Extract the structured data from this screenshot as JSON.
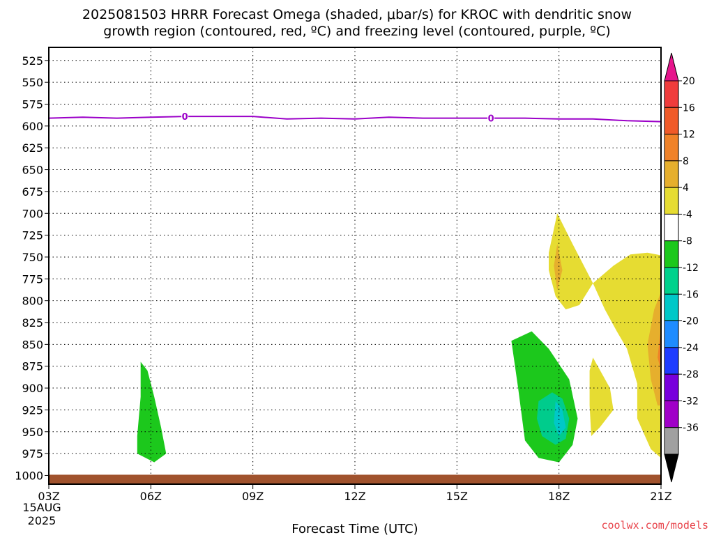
{
  "title": {
    "line1": "2025081503 HRRR Forecast Omega (shaded, μbar/s) for KROC with dendritic snow",
    "line2": "growth region (contoured, red, ºC) and freezing level (contoured, purple, ºC)"
  },
  "credit": "coolwx.com/models",
  "chart_data": {
    "type": "heatmap",
    "xlabel": "Forecast Time (UTC)",
    "x_date_label": [
      "15AUG",
      "2025"
    ],
    "x_ticks": [
      {
        "label": "03Z",
        "hour": 3
      },
      {
        "label": "06Z",
        "hour": 6
      },
      {
        "label": "09Z",
        "hour": 9
      },
      {
        "label": "12Z",
        "hour": 12
      },
      {
        "label": "15Z",
        "hour": 15
      },
      {
        "label": "18Z",
        "hour": 18
      },
      {
        "label": "21Z",
        "hour": 21
      }
    ],
    "xlim": [
      3,
      21
    ],
    "ylim": [
      1010,
      510
    ],
    "y_ticks": [
      525,
      550,
      575,
      600,
      625,
      650,
      675,
      700,
      725,
      750,
      775,
      800,
      825,
      850,
      875,
      900,
      925,
      950,
      975,
      1000
    ],
    "grid": true,
    "freezing_level": {
      "label": "0",
      "color": "#9b00c8",
      "label_hours": [
        7,
        16
      ],
      "points": [
        [
          3,
          591
        ],
        [
          4,
          590
        ],
        [
          5,
          591
        ],
        [
          6,
          590
        ],
        [
          7,
          589
        ],
        [
          8,
          589
        ],
        [
          9,
          589
        ],
        [
          10,
          592
        ],
        [
          11,
          591
        ],
        [
          12,
          592
        ],
        [
          13,
          590
        ],
        [
          14,
          591
        ],
        [
          15,
          591
        ],
        [
          16,
          591
        ],
        [
          17,
          591
        ],
        [
          18,
          592
        ],
        [
          19,
          592
        ],
        [
          20,
          594
        ],
        [
          21,
          595
        ]
      ]
    },
    "surface": {
      "color": "#a0522d",
      "pressure": 1000
    },
    "omega_regions": [
      {
        "level": "-8",
        "color": "#1cc81c",
        "points": [
          [
            5.7,
            870
          ],
          [
            5.9,
            880
          ],
          [
            6.1,
            910
          ],
          [
            6.3,
            945
          ],
          [
            6.45,
            975
          ],
          [
            6.1,
            985
          ],
          [
            5.6,
            975
          ],
          [
            5.6,
            955
          ],
          [
            5.7,
            910
          ]
        ]
      },
      {
        "level": "-8",
        "color": "#1cc81c",
        "points": [
          [
            16.6,
            846
          ],
          [
            17.2,
            835
          ],
          [
            17.7,
            855
          ],
          [
            18.3,
            890
          ],
          [
            18.55,
            935
          ],
          [
            18.4,
            965
          ],
          [
            18.0,
            985
          ],
          [
            17.4,
            980
          ],
          [
            17.0,
            960
          ],
          [
            16.8,
            900
          ]
        ]
      },
      {
        "level": "-12",
        "color": "#00cc8c",
        "points": [
          [
            17.4,
            915
          ],
          [
            17.8,
            905
          ],
          [
            18.1,
            912
          ],
          [
            18.3,
            935
          ],
          [
            18.2,
            958
          ],
          [
            17.9,
            965
          ],
          [
            17.5,
            955
          ],
          [
            17.35,
            935
          ]
        ]
      },
      {
        "level": "-16",
        "color": "#00c8c8",
        "points": [
          [
            17.9,
            915
          ],
          [
            18.1,
            925
          ],
          [
            18.2,
            945
          ],
          [
            18.0,
            955
          ],
          [
            17.85,
            940
          ]
        ]
      },
      {
        "level": "4",
        "color": "#e6dc32",
        "points": [
          [
            17.95,
            700
          ],
          [
            18.4,
            735
          ],
          [
            19.0,
            780
          ],
          [
            18.6,
            805
          ],
          [
            18.2,
            810
          ],
          [
            17.9,
            795
          ],
          [
            17.7,
            765
          ],
          [
            17.7,
            745
          ]
        ]
      },
      {
        "level": "4",
        "color": "#e6dc32",
        "points": [
          [
            19.0,
            780
          ],
          [
            19.6,
            760
          ],
          [
            20.1,
            747
          ],
          [
            20.6,
            745
          ],
          [
            21.0,
            748
          ],
          [
            21.0,
            980
          ],
          [
            20.7,
            970
          ],
          [
            20.3,
            935
          ],
          [
            20.3,
            895
          ],
          [
            20.0,
            855
          ],
          [
            19.7,
            835
          ],
          [
            19.35,
            810
          ]
        ]
      },
      {
        "level": "4",
        "color": "#e6dc32",
        "points": [
          [
            19.0,
            865
          ],
          [
            19.5,
            900
          ],
          [
            19.6,
            925
          ],
          [
            19.2,
            945
          ],
          [
            18.95,
            955
          ],
          [
            18.9,
            920
          ],
          [
            18.9,
            880
          ]
        ]
      },
      {
        "level": "8",
        "color": "#e6af2d",
        "points": [
          [
            17.95,
            735
          ],
          [
            18.1,
            765
          ],
          [
            17.95,
            788
          ],
          [
            17.85,
            760
          ]
        ]
      },
      {
        "level": "8",
        "color": "#e6af2d",
        "points": [
          [
            21.0,
            790
          ],
          [
            20.8,
            810
          ],
          [
            20.6,
            850
          ],
          [
            20.7,
            890
          ],
          [
            20.9,
            920
          ],
          [
            21.0,
            920
          ]
        ]
      },
      {
        "level": "12",
        "color": "#f08228",
        "points": [
          [
            21.0,
            830
          ],
          [
            20.9,
            865
          ],
          [
            21.0,
            880
          ]
        ]
      }
    ],
    "colorbar": {
      "levels": [
        {
          "label": "",
          "color": "#e6148c"
        },
        {
          "label": "20",
          "color": "#f03c3c"
        },
        {
          "label": "16",
          "color": "#f05a28"
        },
        {
          "label": "12",
          "color": "#f08228"
        },
        {
          "label": "8",
          "color": "#e6af2d"
        },
        {
          "label": "4",
          "color": "#e6dc32"
        },
        {
          "label": "-4",
          "color": "#ffffff"
        },
        {
          "label": "-8",
          "color": "#1cc81c"
        },
        {
          "label": "-12",
          "color": "#00d28c"
        },
        {
          "label": "-16",
          "color": "#00c8c8"
        },
        {
          "label": "-20",
          "color": "#1e8cff"
        },
        {
          "label": "-24",
          "color": "#1e3cff"
        },
        {
          "label": "-28",
          "color": "#7800dc"
        },
        {
          "label": "-32",
          "color": "#a000c8"
        },
        {
          "label": "-36",
          "color": "#a0a0a0"
        },
        {
          "label": "",
          "color": "#000000"
        }
      ]
    }
  }
}
